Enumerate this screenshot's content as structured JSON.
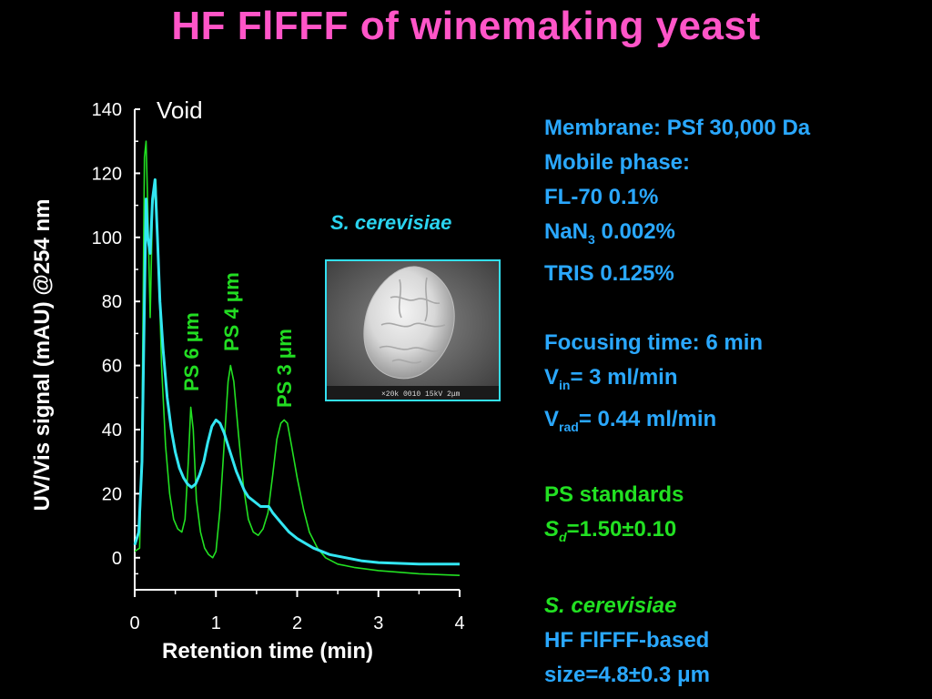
{
  "title": "HF FlFFF of winemaking yeast",
  "colors": {
    "background": "#000000",
    "title": "#ff55c8",
    "sample_trace": "#33e6f2",
    "standards_trace": "#22e022",
    "info_blue": "#2aa8ff",
    "info_green": "#22e022"
  },
  "annotations": {
    "void": "Void",
    "ps6": "PS 6 μm",
    "ps4": "PS 4 μm",
    "ps3": "PS 3 μm",
    "species": "S. cerevisiae"
  },
  "sem_image": {
    "scale_bar_text": "×20k 0010  15kV  2μm"
  },
  "info": {
    "membrane": "Membrane: PSf 30,000 Da",
    "mobile_phase": "Mobile phase:",
    "fl70": "FL-70 0.1%",
    "nan3_pre": "NaN",
    "nan3_sub": "3",
    "nan3_post": " 0.002%",
    "tris": "TRIS 0.125%",
    "focusing": "Focusing time: 6 min",
    "vin_pre": "V",
    "vin_sub": "in",
    "vin_post": "= 3 ml/min",
    "vrad_pre": "V",
    "vrad_sub": "rad",
    "vrad_post": "= 0.44 ml/min",
    "ps_standards": "PS standards",
    "sd_pre": "S",
    "sd_sub": "d",
    "sd_post": "=1.50±0.10",
    "species": "S. cerevisiae",
    "method": "HF FlFFF-based",
    "size": "size=4.8±0.3 μm"
  },
  "chart_data": {
    "type": "line",
    "title": "",
    "xlabel": "Retention time (min)",
    "ylabel": "UV/Vis signal (mAU) @254 nm",
    "xlim": [
      0,
      4
    ],
    "ylim": [
      -10,
      140
    ],
    "x_ticks": [
      0,
      1,
      2,
      3,
      4
    ],
    "y_ticks": [
      0,
      20,
      40,
      60,
      80,
      100,
      120,
      140
    ],
    "grid": false,
    "series": [
      {
        "color": "#22e022",
        "points": [
          [
            0,
            2
          ],
          [
            0.06,
            3
          ],
          [
            0.09,
            40
          ],
          [
            0.12,
            125
          ],
          [
            0.14,
            130
          ],
          [
            0.16,
            110
          ],
          [
            0.19,
            75
          ],
          [
            0.22,
            110
          ],
          [
            0.26,
            118
          ],
          [
            0.29,
            95
          ],
          [
            0.33,
            60
          ],
          [
            0.38,
            35
          ],
          [
            0.43,
            20
          ],
          [
            0.48,
            12
          ],
          [
            0.53,
            9
          ],
          [
            0.58,
            8
          ],
          [
            0.62,
            12
          ],
          [
            0.66,
            30
          ],
          [
            0.69,
            47
          ],
          [
            0.72,
            40
          ],
          [
            0.76,
            18
          ],
          [
            0.81,
            8
          ],
          [
            0.86,
            3
          ],
          [
            0.91,
            1
          ],
          [
            0.96,
            0
          ],
          [
            1.0,
            2
          ],
          [
            1.05,
            15
          ],
          [
            1.1,
            35
          ],
          [
            1.15,
            55
          ],
          [
            1.18,
            60
          ],
          [
            1.22,
            55
          ],
          [
            1.28,
            38
          ],
          [
            1.34,
            22
          ],
          [
            1.4,
            12
          ],
          [
            1.46,
            8
          ],
          [
            1.52,
            7
          ],
          [
            1.58,
            9
          ],
          [
            1.64,
            14
          ],
          [
            1.7,
            26
          ],
          [
            1.75,
            37
          ],
          [
            1.8,
            42
          ],
          [
            1.84,
            43
          ],
          [
            1.88,
            42
          ],
          [
            1.93,
            35
          ],
          [
            2.0,
            25
          ],
          [
            2.08,
            15
          ],
          [
            2.15,
            8
          ],
          [
            2.25,
            3
          ],
          [
            2.35,
            0
          ],
          [
            2.5,
            -2
          ],
          [
            2.7,
            -3
          ],
          [
            3.0,
            -4
          ],
          [
            3.5,
            -5
          ],
          [
            4.0,
            -5.5
          ]
        ]
      },
      {
        "color": "#33e6f2",
        "points": [
          [
            0,
            4
          ],
          [
            0.05,
            8
          ],
          [
            0.09,
            30
          ],
          [
            0.12,
            80
          ],
          [
            0.14,
            112
          ],
          [
            0.16,
            100
          ],
          [
            0.19,
            95
          ],
          [
            0.22,
            112
          ],
          [
            0.25,
            118
          ],
          [
            0.28,
            100
          ],
          [
            0.31,
            80
          ],
          [
            0.35,
            65
          ],
          [
            0.4,
            50
          ],
          [
            0.45,
            40
          ],
          [
            0.5,
            33
          ],
          [
            0.55,
            28
          ],
          [
            0.6,
            25
          ],
          [
            0.65,
            23
          ],
          [
            0.7,
            22
          ],
          [
            0.75,
            23
          ],
          [
            0.8,
            26
          ],
          [
            0.85,
            30
          ],
          [
            0.9,
            36
          ],
          [
            0.95,
            41
          ],
          [
            1.0,
            43
          ],
          [
            1.05,
            42
          ],
          [
            1.1,
            39
          ],
          [
            1.15,
            35
          ],
          [
            1.2,
            31
          ],
          [
            1.25,
            27
          ],
          [
            1.3,
            24
          ],
          [
            1.35,
            21
          ],
          [
            1.4,
            19
          ],
          [
            1.45,
            18
          ],
          [
            1.5,
            17
          ],
          [
            1.55,
            16
          ],
          [
            1.6,
            16
          ],
          [
            1.65,
            16
          ],
          [
            1.7,
            14
          ],
          [
            1.8,
            11
          ],
          [
            1.9,
            8
          ],
          [
            2.0,
            6
          ],
          [
            2.2,
            3
          ],
          [
            2.4,
            1
          ],
          [
            2.6,
            0
          ],
          [
            2.8,
            -1
          ],
          [
            3.0,
            -1.5
          ],
          [
            3.5,
            -2
          ],
          [
            4.0,
            -2
          ]
        ]
      }
    ]
  }
}
